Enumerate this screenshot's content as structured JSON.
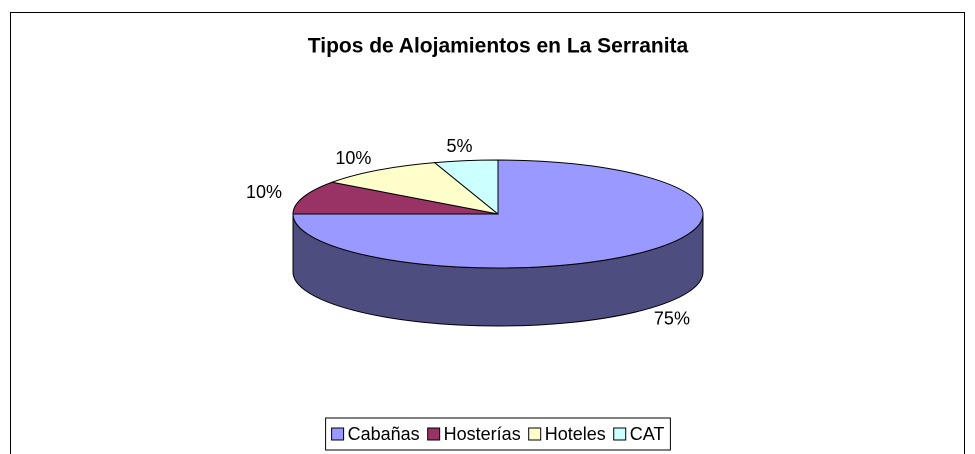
{
  "chart_data": {
    "type": "pie3d",
    "title": "Tipos de Alojamientos en La Serranita",
    "categories": [
      "Cabañas",
      "Hosterías",
      "Hoteles",
      "CAT"
    ],
    "values": [
      75,
      10,
      10,
      5
    ],
    "value_labels": [
      "75%",
      "10%",
      "10%",
      "5%"
    ],
    "colors": [
      "#9999ff",
      "#993366",
      "#ffffcc",
      "#ccffff"
    ],
    "legend": "bottom"
  }
}
